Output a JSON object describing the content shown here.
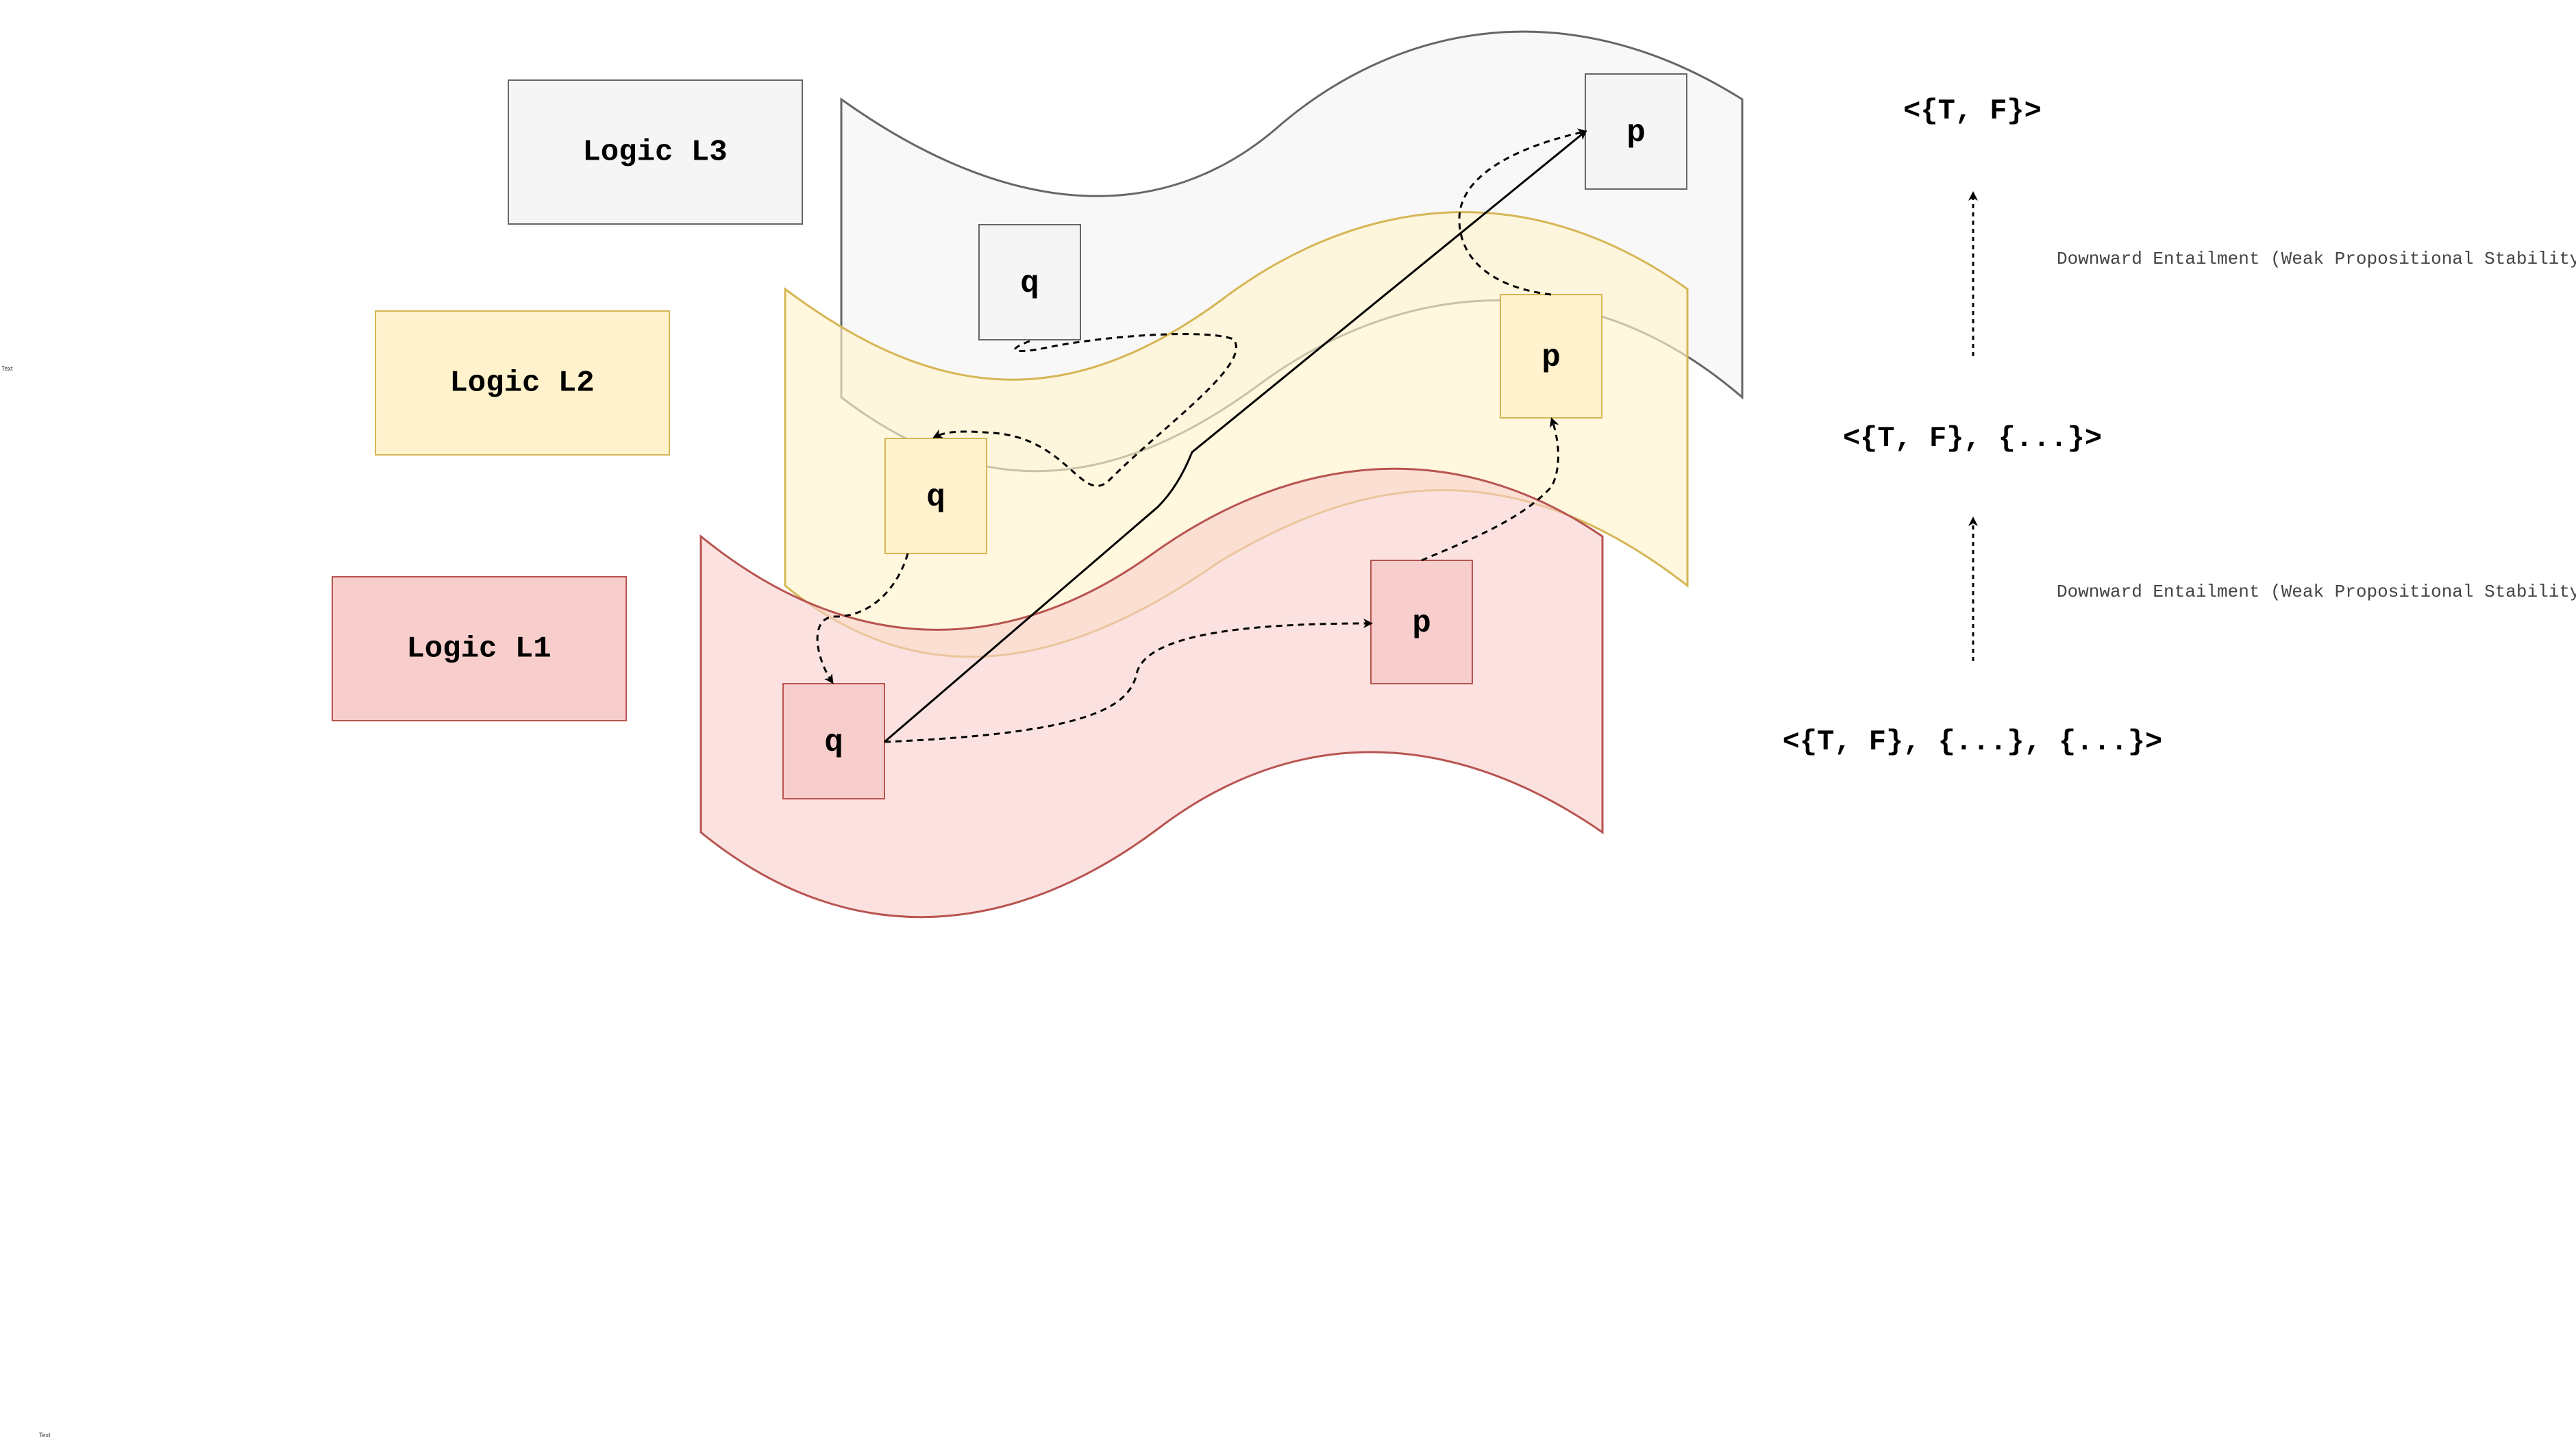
{
  "logic_labels": {
    "l3": "Logic L3",
    "l2": "Logic L2",
    "l1": "Logic L1"
  },
  "nodes": {
    "l3_q": "q",
    "l3_p": "p",
    "l2_q": "q",
    "l2_p": "p",
    "l1_q": "q",
    "l1_p": "p"
  },
  "truth_sets": {
    "l3": "<{T, F}>",
    "l2": "<{T, F}, {...}>",
    "l1": "<{T, F}, {...}, {...}>"
  },
  "entailment": {
    "upper": "Downward Entailment (Weak Propositional Stability)",
    "lower": "Downward Entailment (Weak Propositional Stability)"
  },
  "stray_text": {
    "left": "Text",
    "bottom": "Text"
  },
  "colors": {
    "l3_fill": "#f5f5f5",
    "l3_stroke": "#666666",
    "l2_fill": "#fff2cc",
    "l2_stroke": "#d6b656",
    "l1_fill": "#f8cecc",
    "l1_stroke": "#b85450"
  }
}
